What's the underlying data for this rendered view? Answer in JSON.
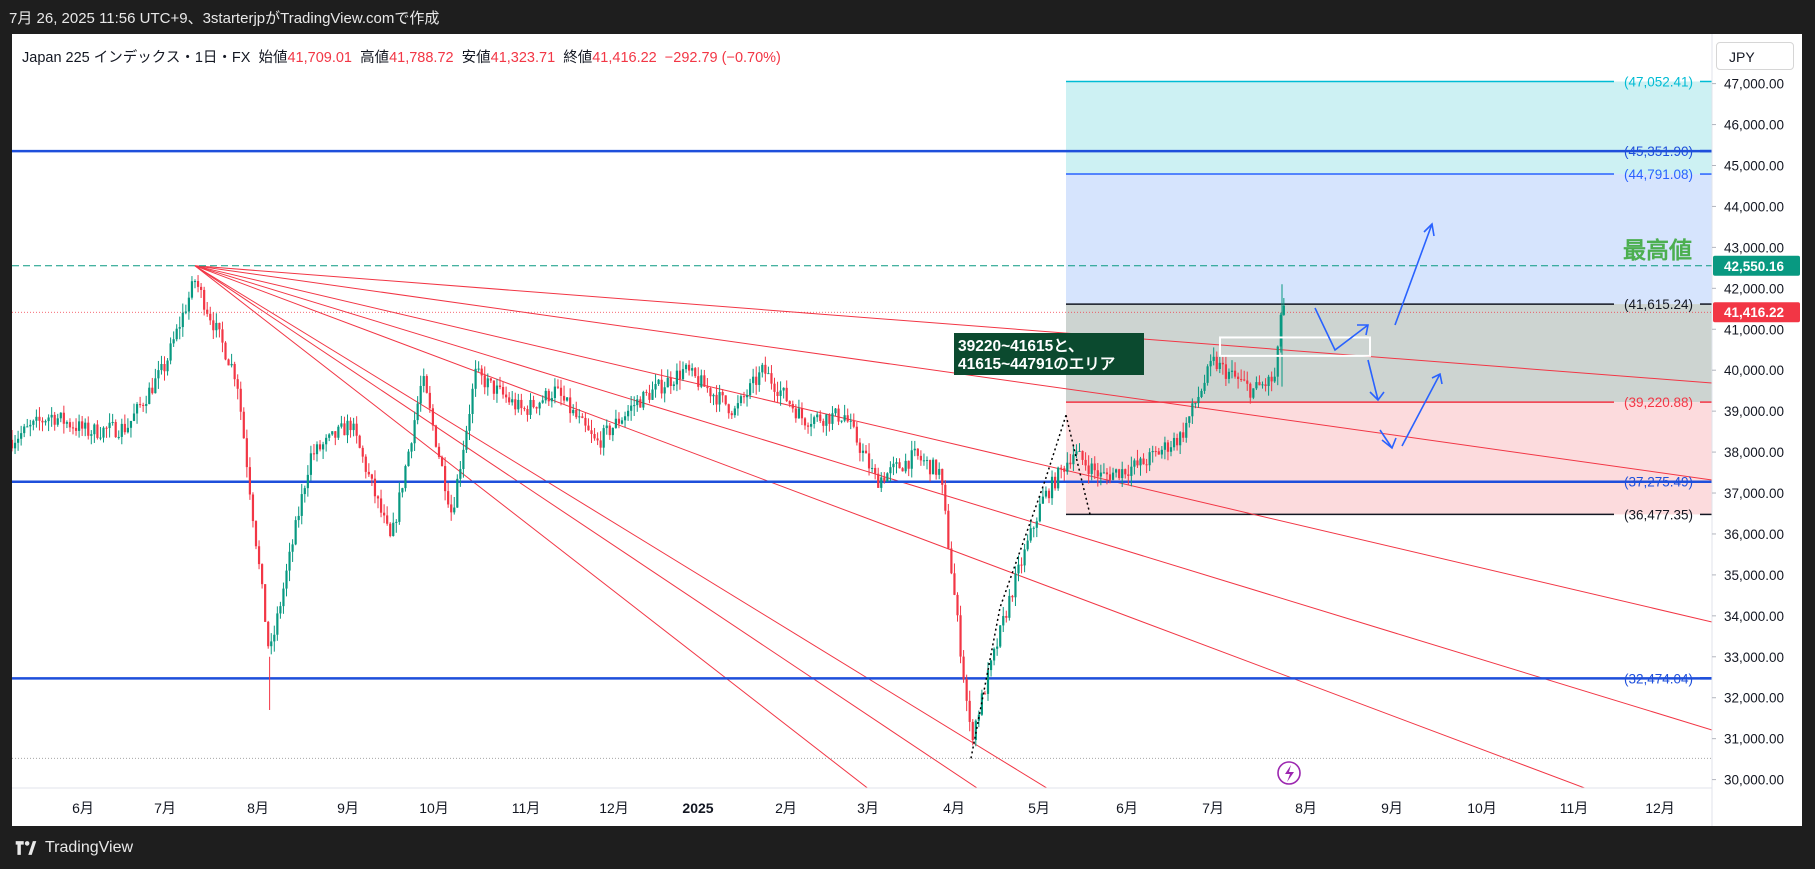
{
  "header": {
    "caption": "7月 26, 2025 11:56 UTC+9、3starterjpがTradingView.comで作成"
  },
  "legend": {
    "symbol": "Japan 225 インデックス・1日・FX",
    "open_label": "始値",
    "open": "41,709.01",
    "high_label": "高値",
    "high": "41,788.72",
    "low_label": "安値",
    "low": "41,323.71",
    "close_label": "終値",
    "close": "41,416.22",
    "change": "−292.79 (−0.70%)"
  },
  "currency_button": "JPY",
  "footer": {
    "brand": "TradingView"
  },
  "colors": {
    "up": "#089981",
    "down": "#f23645",
    "blue_line": "#1e4fdb",
    "cyan_zone": "#cdf1f3",
    "blue_zone": "#d6e4fd",
    "grey_zone": "#cdd4d1",
    "red_zone": "#fcdbdd"
  },
  "annotations": {
    "ath_text": "最高値",
    "area_note_line1": "39220~41615と、",
    "area_note_line2": "41615~44791のエリア"
  },
  "chart_data": {
    "type": "candlestick",
    "title": "Japan 225 インデックス・1日・FX",
    "x_ticks": [
      "6月",
      "7月",
      "8月",
      "9月",
      "10月",
      "11月",
      "12月",
      "2025",
      "2月",
      "3月",
      "4月",
      "5月",
      "6月",
      "7月",
      "8月",
      "9月",
      "10月",
      "11月",
      "12月"
    ],
    "y_ticks": [
      "30,000.00",
      "31,000.00",
      "32,000.00",
      "33,000.00",
      "34,000.00",
      "35,000.00",
      "36,000.00",
      "37,000.00",
      "38,000.00",
      "39,000.00",
      "40,000.00",
      "41,000.00",
      "42,000.00",
      "43,000.00",
      "44,000.00",
      "45,000.00",
      "46,000.00",
      "47,000.00"
    ],
    "ylim": [
      29500,
      48400
    ],
    "x_range": [
      "2024-05",
      "2025-12"
    ],
    "price_tags": [
      {
        "label": "42,550.16",
        "value": 42550.16,
        "color": "#089981"
      },
      {
        "label": "41,416.22",
        "value": 41416.22,
        "color": "#f23645"
      }
    ],
    "fib_levels": [
      {
        "label": "(47,052.41)",
        "value": 47052.41,
        "color": "#00bcd4"
      },
      {
        "label": "(44,791.08)",
        "value": 44791.08,
        "color": "#2962ff"
      },
      {
        "label": "(41,615.24)",
        "value": 41615.24,
        "color": "#131722"
      },
      {
        "label": "(39,220.88)",
        "value": 39220.88,
        "color": "#f23645"
      },
      {
        "label": "(36,477.35)",
        "value": 36477.35,
        "color": "#131722"
      }
    ],
    "horizontal_lines": [
      {
        "label": "(45,351.90)",
        "value": 45351.9
      },
      {
        "label": "(37,275.49)",
        "value": 37275.49
      },
      {
        "label": "(32,474.04)",
        "value": 32474.04
      }
    ],
    "ath_level": 42550.16,
    "fan_origin": {
      "date": "2024-07-11",
      "value": 42550
    },
    "price_path": [
      {
        "date": "2024-05-06",
        "value": 38300
      },
      {
        "date": "2024-05-20",
        "value": 38900
      },
      {
        "date": "2024-06-03",
        "value": 38500
      },
      {
        "date": "2024-06-17",
        "value": 38600
      },
      {
        "date": "2024-07-01",
        "value": 40100
      },
      {
        "date": "2024-07-11",
        "value": 42200
      },
      {
        "date": "2024-07-25",
        "value": 39800
      },
      {
        "date": "2024-08-05",
        "value": 33000
      },
      {
        "date": "2024-08-19",
        "value": 37900
      },
      {
        "date": "2024-09-02",
        "value": 38700
      },
      {
        "date": "2024-09-16",
        "value": 35800
      },
      {
        "date": "2024-09-27",
        "value": 39800
      },
      {
        "date": "2024-10-07",
        "value": 36500
      },
      {
        "date": "2024-10-15",
        "value": 39900
      },
      {
        "date": "2024-10-31",
        "value": 39000
      },
      {
        "date": "2024-11-11",
        "value": 39500
      },
      {
        "date": "2024-11-25",
        "value": 38200
      },
      {
        "date": "2024-12-09",
        "value": 39200
      },
      {
        "date": "2024-12-27",
        "value": 40000
      },
      {
        "date": "2025-01-14",
        "value": 39000
      },
      {
        "date": "2025-01-24",
        "value": 40000
      },
      {
        "date": "2025-02-07",
        "value": 38800
      },
      {
        "date": "2025-02-21",
        "value": 38900
      },
      {
        "date": "2025-03-04",
        "value": 37300
      },
      {
        "date": "2025-03-18",
        "value": 37900
      },
      {
        "date": "2025-03-27",
        "value": 37500
      },
      {
        "date": "2025-04-07",
        "value": 31000
      },
      {
        "date": "2025-04-21",
        "value": 34500
      },
      {
        "date": "2025-05-02",
        "value": 36800
      },
      {
        "date": "2025-05-13",
        "value": 38000
      },
      {
        "date": "2025-05-23",
        "value": 37400
      },
      {
        "date": "2025-06-06",
        "value": 37700
      },
      {
        "date": "2025-06-20",
        "value": 38400
      },
      {
        "date": "2025-07-01",
        "value": 40200
      },
      {
        "date": "2025-07-14",
        "value": 39500
      },
      {
        "date": "2025-07-22",
        "value": 39800
      },
      {
        "date": "2025-07-24",
        "value": 41800
      },
      {
        "date": "2025-07-25",
        "value": 41416
      }
    ],
    "grid": false,
    "legend_position": "top-left"
  }
}
